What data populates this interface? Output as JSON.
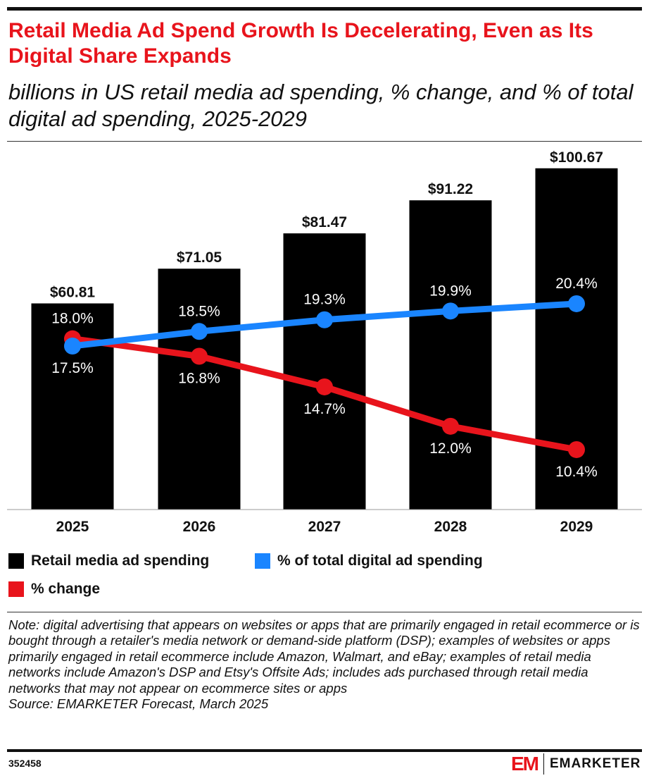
{
  "title": "Retail Media Ad Spend Growth Is Decelerating, Even as Its Digital Share Expands",
  "subtitle": "billions in US retail media ad spending, % change, and % of total digital ad spending, 2025-2029",
  "chart_data": {
    "type": "bar",
    "categories": [
      "2025",
      "2026",
      "2027",
      "2028",
      "2029"
    ],
    "series": [
      {
        "name": "Retail media ad spending",
        "type": "bar",
        "values": [
          60.81,
          71.05,
          81.47,
          91.22,
          100.67
        ],
        "labels": [
          "$60.81",
          "$71.05",
          "$81.47",
          "$91.22",
          "$100.67"
        ],
        "color": "#000000"
      },
      {
        "name": "% of total digital ad spending",
        "type": "line",
        "values": [
          17.5,
          18.5,
          19.3,
          19.9,
          20.4
        ],
        "labels": [
          "17.5%",
          "18.5%",
          "19.3%",
          "19.9%",
          "20.4%"
        ],
        "color": "#1a85ff"
      },
      {
        "name": "% change",
        "type": "line",
        "values": [
          18.0,
          16.8,
          14.7,
          12.0,
          10.4
        ],
        "labels": [
          "18.0%",
          "16.8%",
          "14.7%",
          "12.0%",
          "10.4%"
        ],
        "color": "#e8141c"
      }
    ],
    "grid": false,
    "legend": "bottom"
  },
  "note": "Note: digital advertising that appears on websites or apps that are primarily engaged in retail ecommerce or is bought through a retailer's media network or demand-side platform (DSP); examples of websites or apps primarily engaged in retail ecommerce include Amazon, Walmart, and eBay; examples of retail media networks include Amazon's DSP and Etsy's Offsite Ads; includes ads purchased through retail media networks that may not appear on ecommerce sites or apps",
  "source": "Source: EMARKETER Forecast, March 2025",
  "chart_id": "352458",
  "brand": {
    "mark": "EM",
    "name": "EMARKETER"
  }
}
